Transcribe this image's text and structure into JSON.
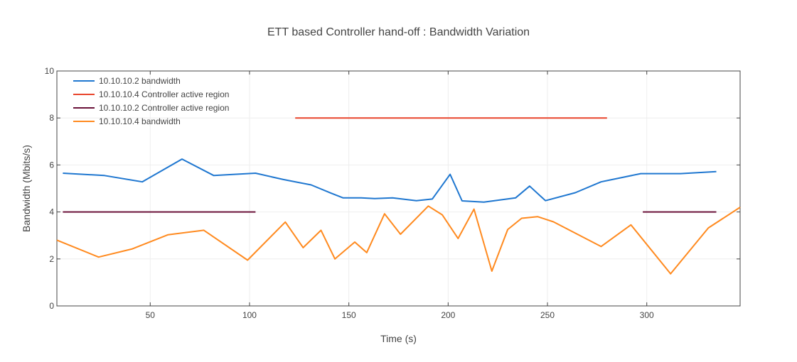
{
  "chart_data": {
    "type": "line",
    "title": "ETT based Controller hand-off : Bandwidth Variation",
    "xlabel": "Time (s)",
    "ylabel": "Bandwidth (Mbits/s)",
    "xlim": [
      3,
      347
    ],
    "ylim": [
      0,
      10
    ],
    "xticks": [
      50,
      100,
      150,
      200,
      250,
      300
    ],
    "yticks": [
      0,
      2,
      4,
      6,
      8,
      10
    ],
    "grid": true,
    "legend_position": "top-left",
    "series": [
      {
        "name": "10.10.10.2 bandwidth",
        "color": "#1f77d0",
        "segments": [
          {
            "x": [
              6,
              27,
              46,
              66,
              82,
              103,
              117,
              131,
              141,
              147,
              156,
              163,
              172,
              184,
              192,
              201,
              207,
              218,
              234,
              241,
              249,
              264,
              277,
              297,
              317,
              335
            ],
            "y": [
              5.65,
              5.55,
              5.28,
              6.25,
              5.55,
              5.65,
              5.38,
              5.15,
              4.8,
              4.6,
              4.6,
              4.57,
              4.6,
              4.48,
              4.55,
              5.6,
              4.47,
              4.42,
              4.6,
              5.1,
              4.48,
              4.82,
              5.28,
              5.63,
              5.63,
              5.72
            ]
          }
        ]
      },
      {
        "name": "10.10.10.4 Controller active region",
        "color": "#e8452c",
        "segments": [
          {
            "x": [
              123,
              280
            ],
            "y": [
              8,
              8
            ]
          }
        ]
      },
      {
        "name": "10.10.10.2 Controller active region",
        "color": "#6a1239",
        "segments": [
          {
            "x": [
              6,
              103
            ],
            "y": [
              4,
              4
            ]
          },
          {
            "x": [
              298,
              335
            ],
            "y": [
              4,
              4
            ]
          }
        ]
      },
      {
        "name": "10.10.10.4 bandwidth",
        "color": "#ff8a1f",
        "segments": [
          {
            "x": [
              3,
              24,
              41,
              59,
              77,
              99,
              118,
              127,
              136,
              143,
              153,
              159,
              168,
              176,
              190,
              197,
              205,
              213,
              222,
              230,
              237,
              245,
              253,
              277,
              292,
              312,
              331,
              347
            ],
            "y": [
              2.8,
              2.08,
              2.43,
              3.03,
              3.22,
              1.95,
              3.57,
              2.48,
              3.22,
              2.0,
              2.72,
              2.27,
              3.92,
              3.05,
              4.25,
              3.88,
              2.87,
              4.12,
              1.48,
              3.25,
              3.73,
              3.8,
              3.58,
              2.53,
              3.45,
              1.37,
              3.32,
              4.2
            ]
          }
        ]
      }
    ]
  }
}
